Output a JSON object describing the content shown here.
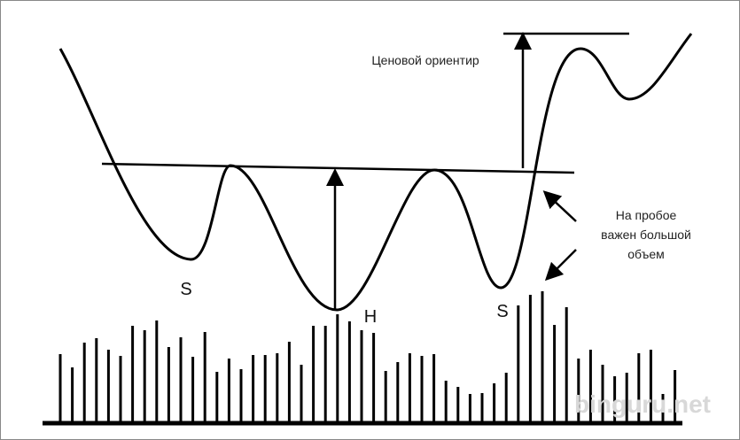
{
  "labels": {
    "left_shoulder": "S",
    "head": "H",
    "right_shoulder": "S"
  },
  "target_label": "Ценовой ориентир",
  "volume_note": [
    "На пробое",
    "важен большой",
    "объем"
  ],
  "watermark": "binguru.net"
}
